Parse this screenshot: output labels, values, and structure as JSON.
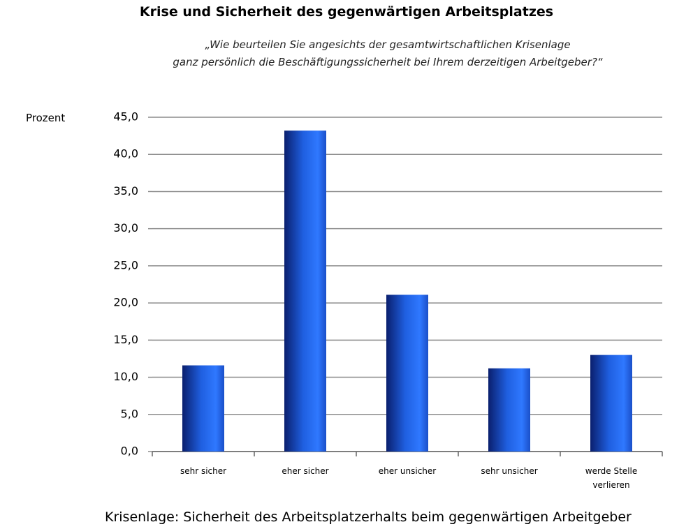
{
  "chart_data": {
    "type": "bar",
    "title": "Krise und Sicherheit des gegenwärtigen Arbeitsplatzes",
    "subtitle": [
      "„Wie beurteilen Sie angesichts der gesamtwirtschaftlichen Krisenlage",
      "ganz persönlich die Beschäftigungssicherheit bei Ihrem derzeitigen Arbeitgeber?“"
    ],
    "y_label": "Prozent",
    "caption": "Krisenlage: Sicherheit des Arbeitsplatzerhalts beim gegenwärtigen Arbeitgeber",
    "categories": [
      "sehr sicher",
      "eher sicher",
      "eher unsicher",
      "sehr unsicher",
      "werde Stelle verlieren"
    ],
    "values": [
      11.6,
      43.2,
      21.1,
      11.2,
      13.0
    ],
    "color": "#1f5fe0",
    "ylim": [
      0,
      45
    ],
    "yticks": [
      {
        "value": 0,
        "label": "0,0"
      },
      {
        "value": 5,
        "label": "5,0"
      },
      {
        "value": 10,
        "label": "10,0"
      },
      {
        "value": 15,
        "label": "15,0"
      },
      {
        "value": 20,
        "label": "20,0"
      },
      {
        "value": 25,
        "label": "25,0"
      },
      {
        "value": 30,
        "label": "30,0"
      },
      {
        "value": 35,
        "label": "35,0"
      },
      {
        "value": 40,
        "label": "40,0"
      },
      {
        "value": 45,
        "label": "45,0"
      }
    ],
    "grid": true
  }
}
